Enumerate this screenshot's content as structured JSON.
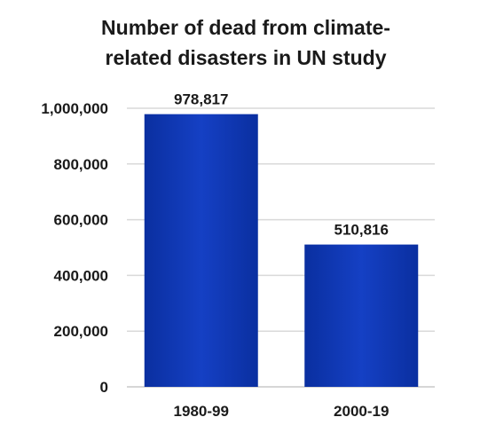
{
  "chart_data": {
    "type": "bar",
    "title_lines": [
      "Number of dead from climate-",
      "related disasters in UN study"
    ],
    "categories": [
      "1980-99",
      "2000-19"
    ],
    "values": [
      978817,
      510816
    ],
    "data_labels": [
      "978,817",
      "510,816"
    ],
    "ylim": [
      0,
      1000000
    ],
    "yticks": [
      0,
      200000,
      400000,
      600000,
      800000,
      1000000
    ],
    "ytick_labels": [
      "0",
      "200,000",
      "400,000",
      "600,000",
      "800,000",
      "1,000,000"
    ],
    "xlabel": "",
    "ylabel": "",
    "grid": true,
    "legend": "none",
    "bar_color": "#0a2fa0",
    "bar_color_light": "#1540c4"
  }
}
